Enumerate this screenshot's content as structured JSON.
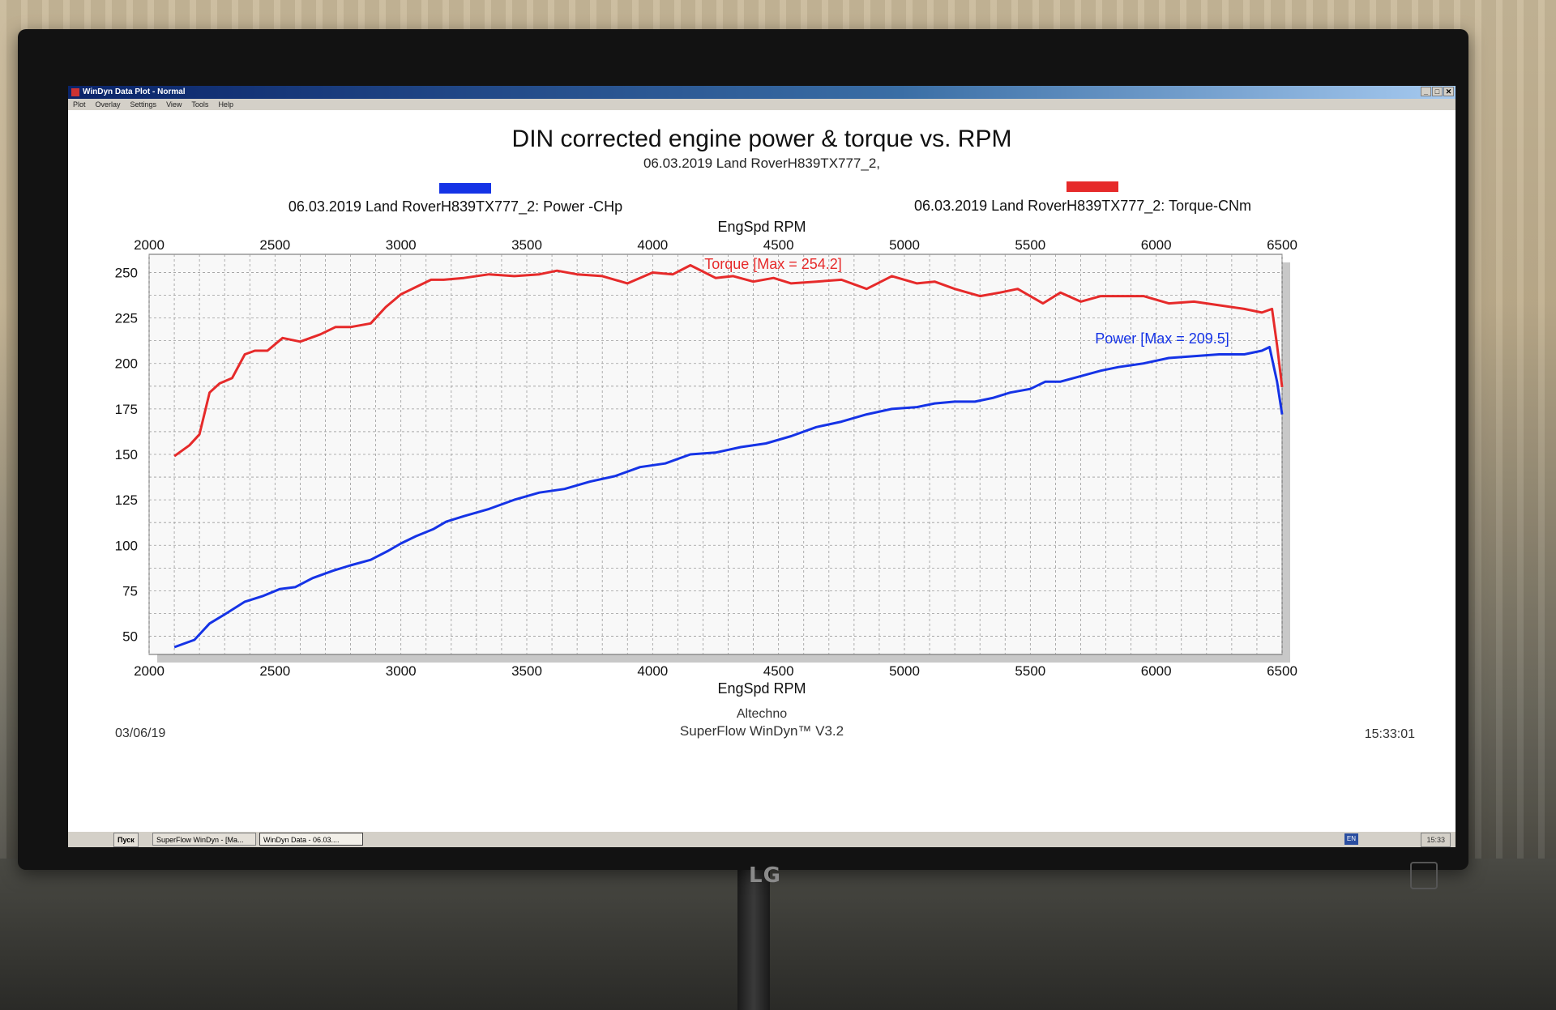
{
  "window": {
    "title": "WinDyn Data Plot - Normal",
    "menu": [
      "Plot",
      "Overlay",
      "Settings",
      "View",
      "Tools",
      "Help"
    ],
    "buttons": [
      "_",
      "□",
      "✕"
    ]
  },
  "chart_data": {
    "type": "line",
    "title": "DIN corrected engine power & torque vs. RPM",
    "subtitle": "06.03.2019 Land RoverH839TX777_2,",
    "xlabel": "EngSpd RPM",
    "xlim": [
      2000,
      6500
    ],
    "ylim": [
      40,
      260
    ],
    "x_ticks": [
      2000,
      2500,
      3000,
      3500,
      4000,
      4500,
      5000,
      5500,
      6000,
      6500
    ],
    "y_ticks": [
      50,
      75,
      100,
      125,
      150,
      175,
      200,
      225,
      250
    ],
    "grid": true,
    "legend": [
      {
        "label": "06.03.2019 Land RoverH839TX777_2: Power -CHp",
        "color": "#1533e6"
      },
      {
        "label": "06.03.2019 Land RoverH839TX777_2: Torque-CNm",
        "color": "#e62a2a"
      }
    ],
    "annotations": {
      "torque": "Torque [Max = 254.2]",
      "power": "Power  [Max = 209.5]"
    },
    "series": [
      {
        "name": "Torque-CNm",
        "color": "#e62a2a",
        "x": [
          2100,
          2160,
          2200,
          2240,
          2280,
          2330,
          2380,
          2420,
          2470,
          2530,
          2600,
          2680,
          2740,
          2800,
          2880,
          2940,
          3000,
          3060,
          3120,
          3170,
          3250,
          3350,
          3450,
          3550,
          3620,
          3700,
          3800,
          3900,
          4000,
          4080,
          4150,
          4250,
          4320,
          4400,
          4480,
          4550,
          4650,
          4750,
          4850,
          4950,
          5050,
          5120,
          5200,
          5300,
          5380,
          5450,
          5550,
          5620,
          5700,
          5780,
          5850,
          5950,
          6050,
          6150,
          6250,
          6350,
          6420,
          6460,
          6480,
          6500
        ],
        "values": [
          149,
          155,
          161,
          184,
          189,
          192,
          205,
          207,
          207,
          214,
          212,
          216,
          220,
          220,
          222,
          231,
          238,
          242,
          246,
          246,
          247,
          249,
          248,
          249,
          251,
          249,
          248,
          244,
          250,
          249,
          254,
          247,
          248,
          245,
          247,
          244,
          245,
          246,
          241,
          248,
          244,
          245,
          241,
          237,
          239,
          241,
          233,
          239,
          234,
          237,
          237,
          237,
          233,
          234,
          232,
          230,
          228,
          230,
          210,
          187
        ]
      },
      {
        "name": "Power -CHp",
        "color": "#1533e6",
        "x": [
          2100,
          2180,
          2240,
          2300,
          2380,
          2450,
          2520,
          2580,
          2650,
          2730,
          2800,
          2880,
          2950,
          3000,
          3060,
          3130,
          3180,
          3250,
          3350,
          3450,
          3550,
          3650,
          3750,
          3850,
          3950,
          4050,
          4150,
          4250,
          4350,
          4450,
          4550,
          4650,
          4750,
          4850,
          4950,
          5050,
          5120,
          5200,
          5280,
          5350,
          5420,
          5500,
          5560,
          5620,
          5700,
          5780,
          5850,
          5950,
          6050,
          6150,
          6250,
          6350,
          6420,
          6450,
          6480,
          6500
        ],
        "values": [
          44,
          48,
          57,
          62,
          69,
          72,
          76,
          77,
          82,
          86,
          89,
          92,
          97,
          101,
          105,
          109,
          113,
          116,
          120,
          125,
          129,
          131,
          135,
          138,
          143,
          145,
          150,
          151,
          154,
          156,
          160,
          165,
          168,
          172,
          175,
          176,
          178,
          179,
          179,
          181,
          184,
          186,
          190,
          190,
          193,
          196,
          198,
          200,
          203,
          204,
          205,
          205,
          207,
          209,
          190,
          172
        ]
      }
    ]
  },
  "footer": {
    "date": "03/06/19",
    "company": "Altechno",
    "software": "SuperFlow WinDyn™ V3.2",
    "time": "15:33:01"
  },
  "taskbar": {
    "start": "Пуск",
    "items": [
      "SuperFlow WinDyn - [Ma...",
      "WinDyn Data - 06.03...."
    ],
    "lang": "EN",
    "clock": "15:33"
  },
  "monitor": {
    "brand": "LG"
  }
}
